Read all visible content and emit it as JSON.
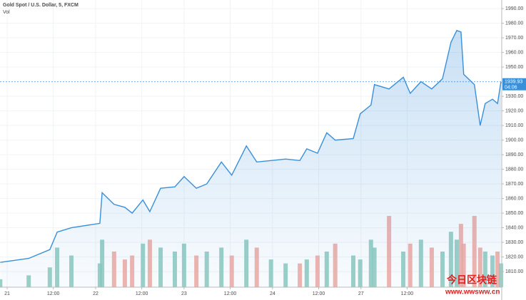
{
  "chart_data": {
    "type": "area",
    "title": "Gold Spot / U.S. Dollar, 5, FXCM",
    "volume_label": "Vol",
    "x": [
      -1.8,
      5.6,
      11.1,
      13.0,
      16.7,
      24.1,
      24.7,
      27.8,
      30.6,
      32.5,
      35.3,
      37.1,
      39.9,
      43.6,
      46.0,
      49.2,
      51.9,
      55.7,
      58.4,
      62.2,
      64.9,
      68.6,
      72.4,
      76.1,
      77.9,
      80.7,
      83.1,
      85.3,
      90.0,
      91.8,
      94.6,
      95.5,
      99.3,
      103.0,
      104.8,
      107.6,
      110.4,
      113.2,
      115.4,
      116.9,
      118.0,
      118.7,
      121.5,
      123.0,
      124.3,
      126.2,
      127.5,
      128.4
    ],
    "series": [
      {
        "name": "Gold Spot / U.S. Dollar",
        "color": "#3a8fd9",
        "values": [
          1816.3,
          1819,
          1825,
          1837,
          1840,
          1843,
          1864,
          1856,
          1854,
          1850,
          1859,
          1851,
          1867,
          1868,
          1875,
          1867,
          1870,
          1885,
          1876,
          1896,
          1885,
          1886,
          1887,
          1886,
          1894,
          1891,
          1905,
          1900,
          1901,
          1918,
          1924,
          1938,
          1935,
          1943,
          1932,
          1940,
          1935,
          1942,
          1967,
          1975,
          1974,
          1945,
          1938,
          1910,
          1925,
          1928,
          1925,
          1939.93
        ]
      },
      {
        "name": "Vol",
        "up_color": "#8cc9bd",
        "down_color": "#f0a8a0",
        "values": [
          10,
          15,
          25,
          50,
          40,
          30,
          60,
          45,
          35,
          40,
          55,
          60,
          50,
          45,
          55,
          40,
          45,
          50,
          40,
          60,
          50,
          35,
          30,
          30,
          35,
          40,
          45,
          55,
          40,
          35,
          60,
          50,
          90,
          45,
          55,
          60,
          50,
          45,
          70,
          60,
          80,
          55,
          90,
          50,
          45,
          40,
          45,
          30
        ]
      }
    ],
    "last_price": 1939.93,
    "countdown": "04:06",
    "xlim": [
      -1.86,
      128.6
    ],
    "xticks": [
      {
        "value": 0,
        "label": "21"
      },
      {
        "value": 12,
        "label": "12:00"
      },
      {
        "value": 23,
        "label": "22"
      },
      {
        "value": 35,
        "label": "12:00"
      },
      {
        "value": 46,
        "label": "23"
      },
      {
        "value": 58,
        "label": "12:00"
      },
      {
        "value": 69,
        "label": "24"
      },
      {
        "value": 81,
        "label": "12:00"
      },
      {
        "value": 92,
        "label": "27"
      },
      {
        "value": 104,
        "label": "12:00"
      }
    ],
    "ylim": [
      1799.3,
      1995.9
    ],
    "yticks": [
      {
        "value": 1810,
        "label": "1810.00"
      },
      {
        "value": 1820,
        "label": "1820.00"
      },
      {
        "value": 1830,
        "label": "1830.00"
      },
      {
        "value": 1840,
        "label": "1840.00"
      },
      {
        "value": 1850,
        "label": "1850.00"
      },
      {
        "value": 1860,
        "label": "1860.00"
      },
      {
        "value": 1870,
        "label": "1870.00"
      },
      {
        "value": 1880,
        "label": "1880.00"
      },
      {
        "value": 1890,
        "label": "1890.00"
      },
      {
        "value": 1900,
        "label": "1900.00"
      },
      {
        "value": 1910,
        "label": "1910.00"
      },
      {
        "value": 1920,
        "label": "1920.00"
      },
      {
        "value": 1930,
        "label": "1930.00"
      },
      {
        "value": 1950,
        "label": "1950.00"
      },
      {
        "value": 1960,
        "label": "1960.00"
      },
      {
        "value": 1970,
        "label": "1970.00"
      },
      {
        "value": 1980,
        "label": "1980.00"
      },
      {
        "value": 1990,
        "label": "1990.00"
      }
    ],
    "grid": true
  },
  "watermark": {
    "title": "今日区块链",
    "url": "www.wwsww.cn"
  }
}
